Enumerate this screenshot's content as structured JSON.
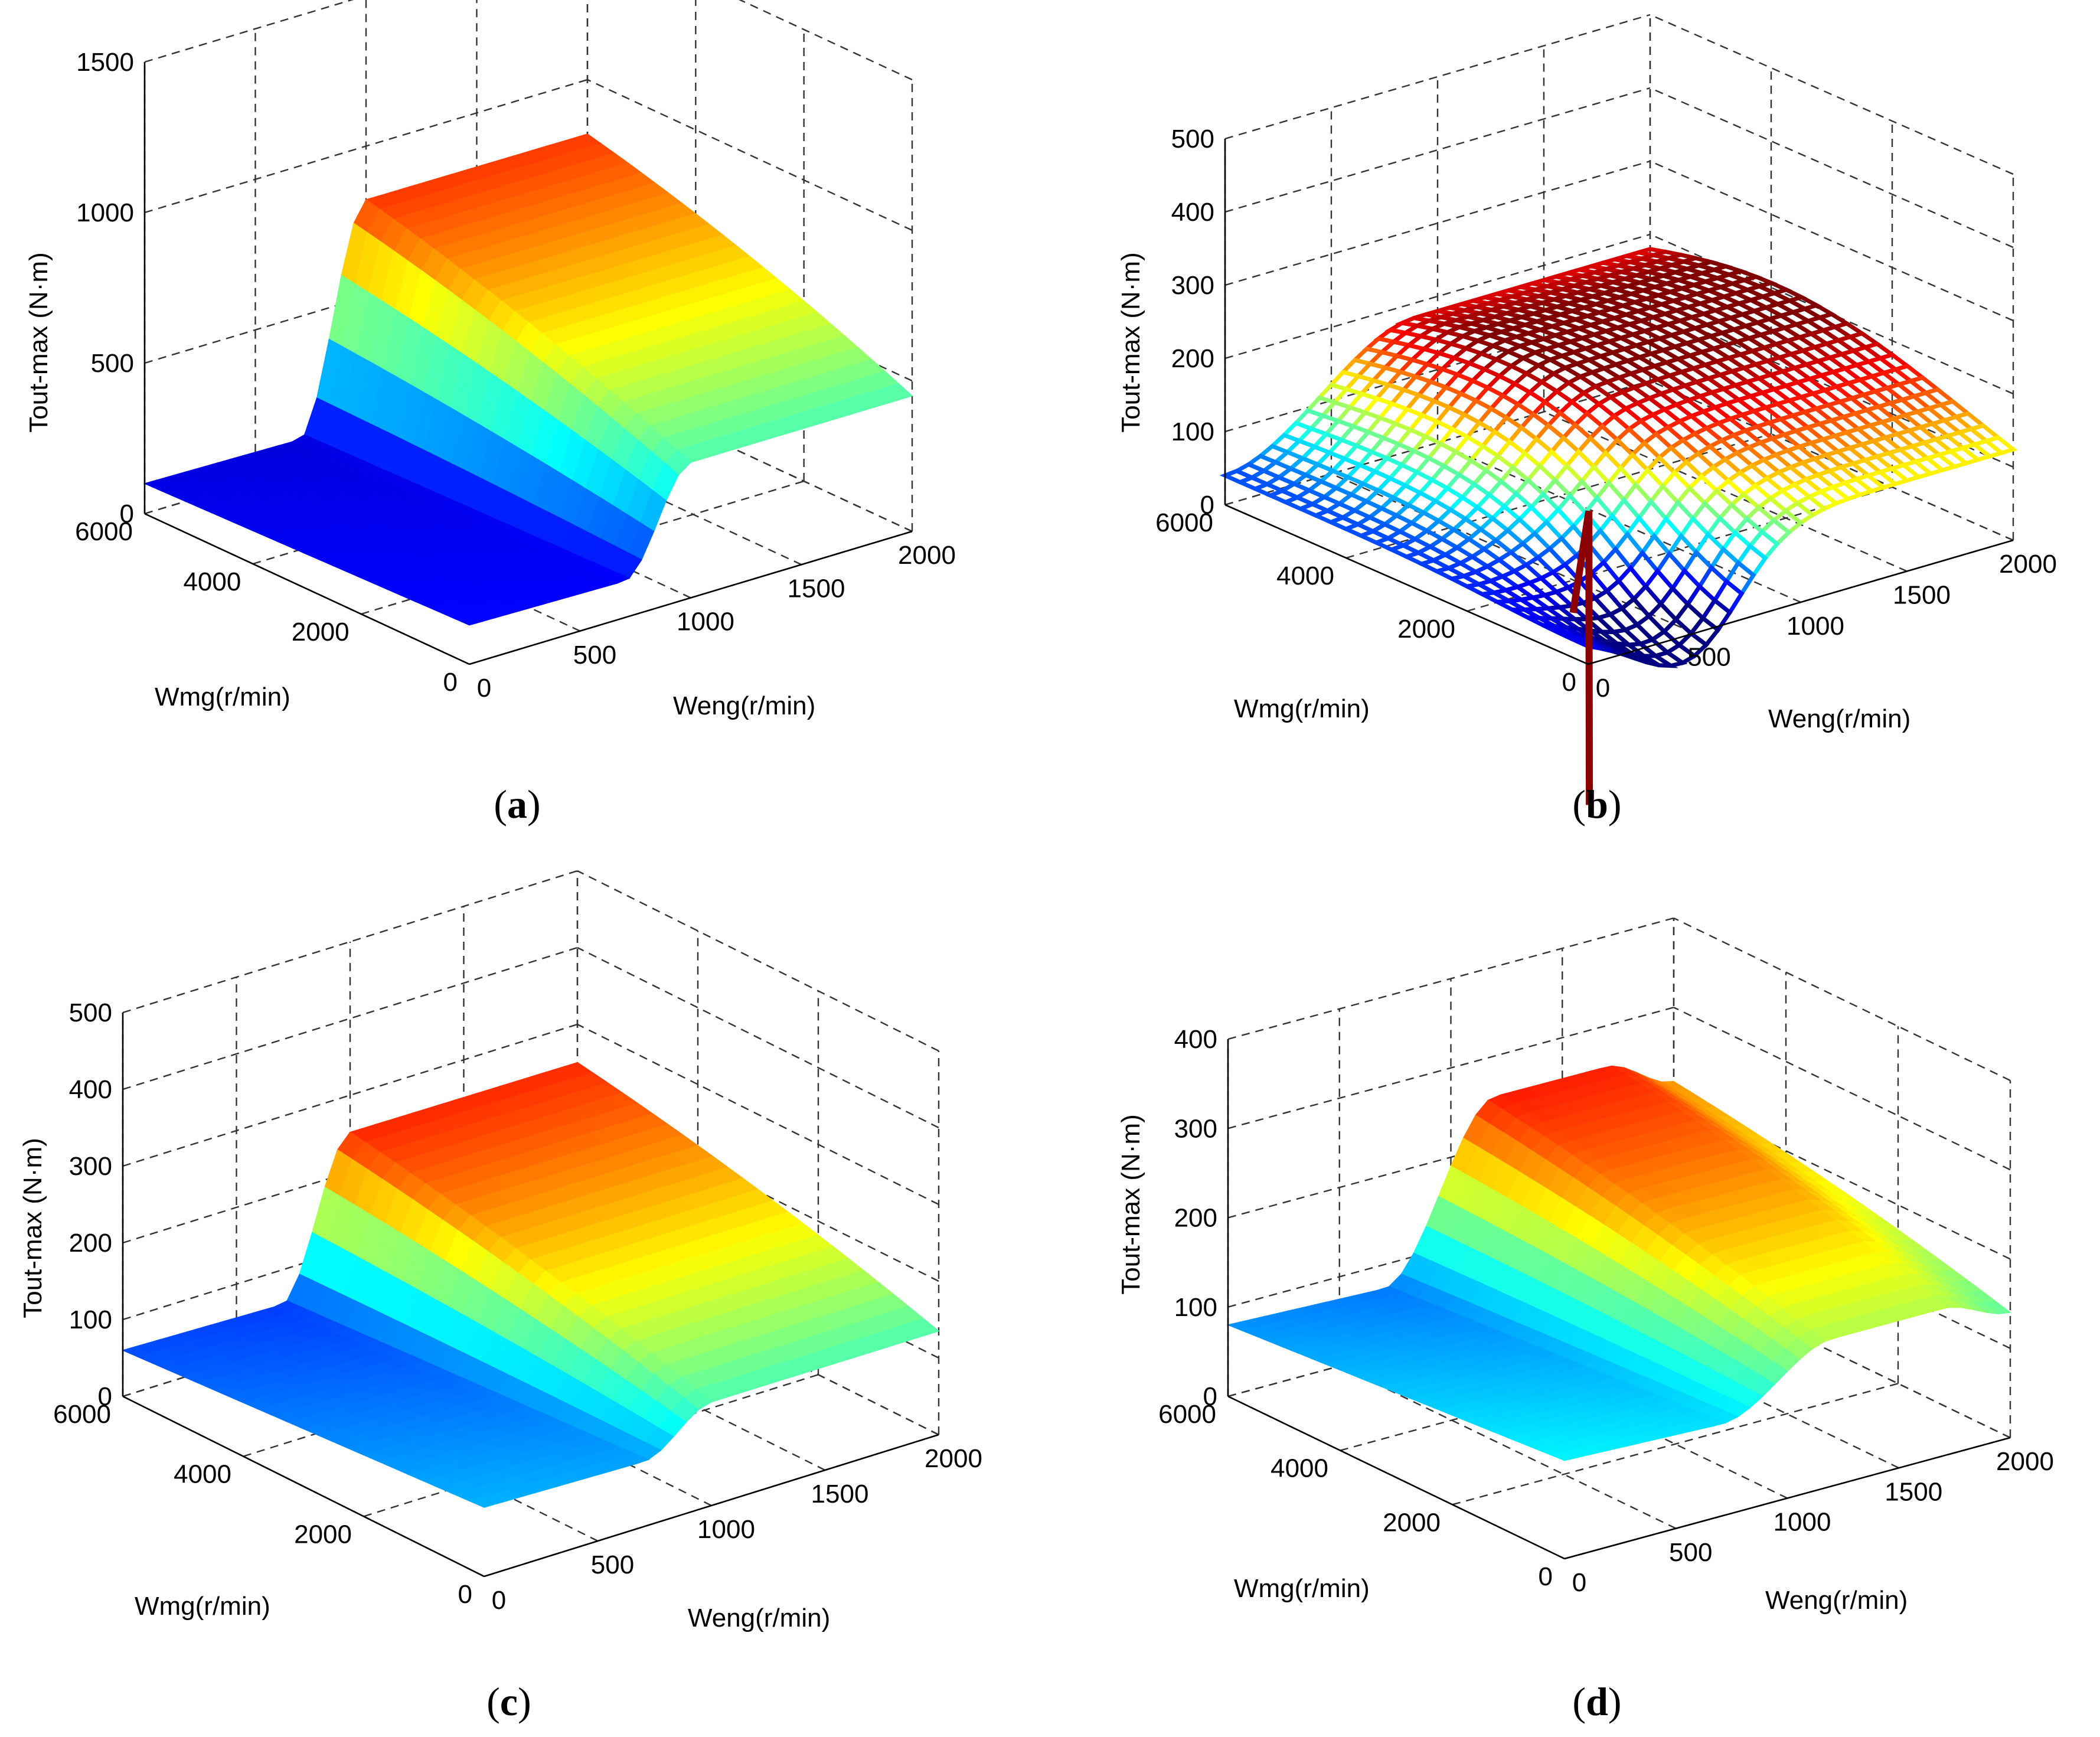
{
  "figure": {
    "panels": [
      {
        "caption_open": "(",
        "caption_letter": "a",
        "caption_close": ")"
      },
      {
        "caption_open": "(",
        "caption_letter": "b",
        "caption_close": ")"
      },
      {
        "caption_open": "(",
        "caption_letter": "c",
        "caption_close": ")"
      },
      {
        "caption_open": "(",
        "caption_letter": "d",
        "caption_close": ")"
      }
    ]
  },
  "chart_data": [
    {
      "panel": "a",
      "type": "surface",
      "zlabel": "Tout-max (N·m)",
      "xlabel": "Weng(r/min)",
      "ylabel": "Wmg(r/min)",
      "zlim": [
        0,
        1500
      ],
      "xlim": [
        0,
        2000
      ],
      "ylim": [
        0,
        6000
      ],
      "zticks": [
        "0",
        "500",
        "1000",
        "1500"
      ],
      "xticks": [
        "0",
        "500",
        "1000",
        "1500",
        "2000"
      ],
      "yticks": [
        "0",
        "2000",
        "4000",
        "6000"
      ],
      "grid": true,
      "surface": {
        "shape": "plateau",
        "zmax": 1000,
        "rise_start": 700,
        "rise_end": 1000,
        "floor": 100
      }
    },
    {
      "panel": "b",
      "type": "surface",
      "zlabel": "Tout-max (N·m)",
      "xlabel": "Weng(r/min)",
      "ylabel": "Wmg(r/min)",
      "zlim": [
        0,
        500
      ],
      "xlim": [
        0,
        2000
      ],
      "ylim": [
        0,
        6000
      ],
      "zticks": [
        "0",
        "100",
        "200",
        "300",
        "400",
        "500"
      ],
      "xticks": [
        "0",
        "500",
        "1000",
        "1500",
        "2000"
      ],
      "yticks": [
        "0",
        "2000",
        "4000",
        "6000"
      ],
      "grid": true,
      "surface": {
        "shape": "wave",
        "zmax": 200,
        "spike_peak": 180,
        "dip_min": -200,
        "floor": 40
      }
    },
    {
      "panel": "c",
      "type": "surface",
      "zlabel": "Tout-max (N·m)",
      "xlabel": "Weng(r/min)",
      "ylabel": "Wmg(r/min)",
      "zlim": [
        0,
        500
      ],
      "xlim": [
        0,
        2000
      ],
      "ylim": [
        0,
        6000
      ],
      "zticks": [
        "0",
        "100",
        "200",
        "300",
        "400",
        "500"
      ],
      "xticks": [
        "0",
        "500",
        "1000",
        "1500",
        "2000"
      ],
      "yticks": [
        "0",
        "2000",
        "4000",
        "6000"
      ],
      "grid": true,
      "surface": {
        "shape": "plateau",
        "zmax": 300,
        "rise_start": 700,
        "rise_end": 1000,
        "floor": 60
      }
    },
    {
      "panel": "d",
      "type": "surface",
      "zlabel": "Tout-max (N·m)",
      "xlabel": "Weng(r/min)",
      "ylabel": "Wmg(r/min)",
      "zlim": [
        0,
        400
      ],
      "xlim": [
        0,
        2000
      ],
      "ylim": [
        0,
        6000
      ],
      "zticks": [
        "0",
        "100",
        "200",
        "300",
        "400"
      ],
      "xticks": [
        "0",
        "500",
        "1000",
        "1500",
        "2000"
      ],
      "yticks": [
        "0",
        "2000",
        "4000",
        "6000"
      ],
      "grid": true,
      "surface": {
        "shape": "ridge",
        "zmax": 300,
        "rise_start": 700,
        "rise_end": 1200,
        "floor": 80
      }
    }
  ]
}
